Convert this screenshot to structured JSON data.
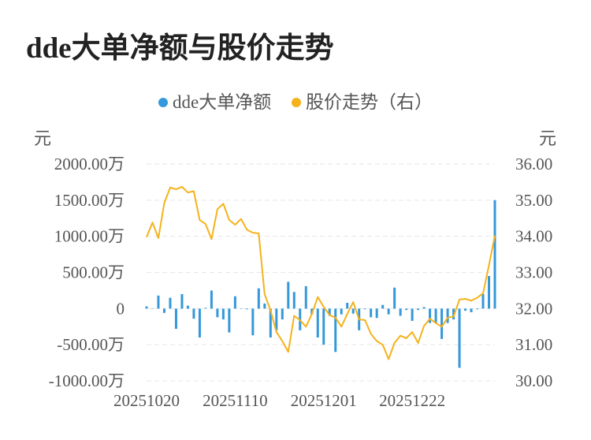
{
  "chart_data": {
    "type": "bar+line",
    "title": "dde大单净额与股价走势",
    "legend": [
      {
        "name": "dde大单净额",
        "color": "#3498db"
      },
      {
        "name": "股价走势（右）",
        "color": "#f5b21b"
      }
    ],
    "left_unit": "元",
    "right_unit": "元",
    "left_axis": {
      "min": -1000,
      "max": 2000,
      "ticks": [
        "2000.00万",
        "1500.00万",
        "1000.00万",
        "500.00万",
        "0",
        "-500.00万",
        "-1000.00万"
      ],
      "tick_values": [
        2000,
        1500,
        1000,
        500,
        0,
        -500,
        -1000
      ]
    },
    "right_axis": {
      "min": 30,
      "max": 36,
      "ticks": [
        "36.00",
        "35.00",
        "34.00",
        "33.00",
        "32.00",
        "31.00",
        "30.00"
      ],
      "tick_values": [
        36,
        35,
        34,
        33,
        32,
        31,
        30
      ]
    },
    "x_tick_labels": [
      {
        "label": "20251020",
        "index": 0
      },
      {
        "label": "20251110",
        "index": 15
      },
      {
        "label": "20251201",
        "index": 30
      },
      {
        "label": "20251222",
        "index": 45
      }
    ],
    "series": [
      {
        "name": "dde大单净额",
        "type": "bar",
        "axis": "left",
        "color": "#3498db",
        "values": [
          30,
          0,
          180,
          -60,
          150,
          -280,
          200,
          40,
          -140,
          -400,
          10,
          250,
          -120,
          -150,
          -330,
          170,
          0,
          -10,
          -370,
          280,
          70,
          -400,
          -300,
          -150,
          370,
          230,
          -300,
          310,
          -80,
          -400,
          -500,
          -100,
          -600,
          -80,
          80,
          -70,
          -300,
          -10,
          -120,
          -130,
          50,
          -80,
          290,
          -100,
          -20,
          -170,
          -20,
          20,
          -200,
          -200,
          -420,
          -200,
          -150,
          -820,
          -30,
          -50,
          -10,
          200,
          450,
          1500
        ]
      },
      {
        "name": "股价走势（右）",
        "type": "line",
        "axis": "right",
        "color": "#f5b21b",
        "values": [
          33.98,
          34.38,
          33.95,
          34.92,
          35.35,
          35.3,
          35.37,
          35.21,
          35.25,
          34.45,
          34.34,
          33.92,
          34.75,
          34.9,
          34.45,
          34.32,
          34.48,
          34.18,
          34.1,
          34.08,
          32.4,
          31.95,
          31.35,
          31.1,
          30.8,
          31.8,
          31.68,
          31.5,
          31.85,
          32.32,
          32.05,
          31.82,
          31.75,
          31.5,
          31.85,
          32.18,
          31.7,
          31.68,
          31.3,
          31.1,
          31.0,
          30.6,
          31.05,
          31.25,
          31.18,
          31.35,
          31.05,
          31.52,
          31.72,
          31.6,
          31.5,
          31.75,
          31.78,
          32.25,
          32.27,
          32.22,
          32.3,
          32.42,
          33.2,
          34.02
        ]
      }
    ]
  }
}
